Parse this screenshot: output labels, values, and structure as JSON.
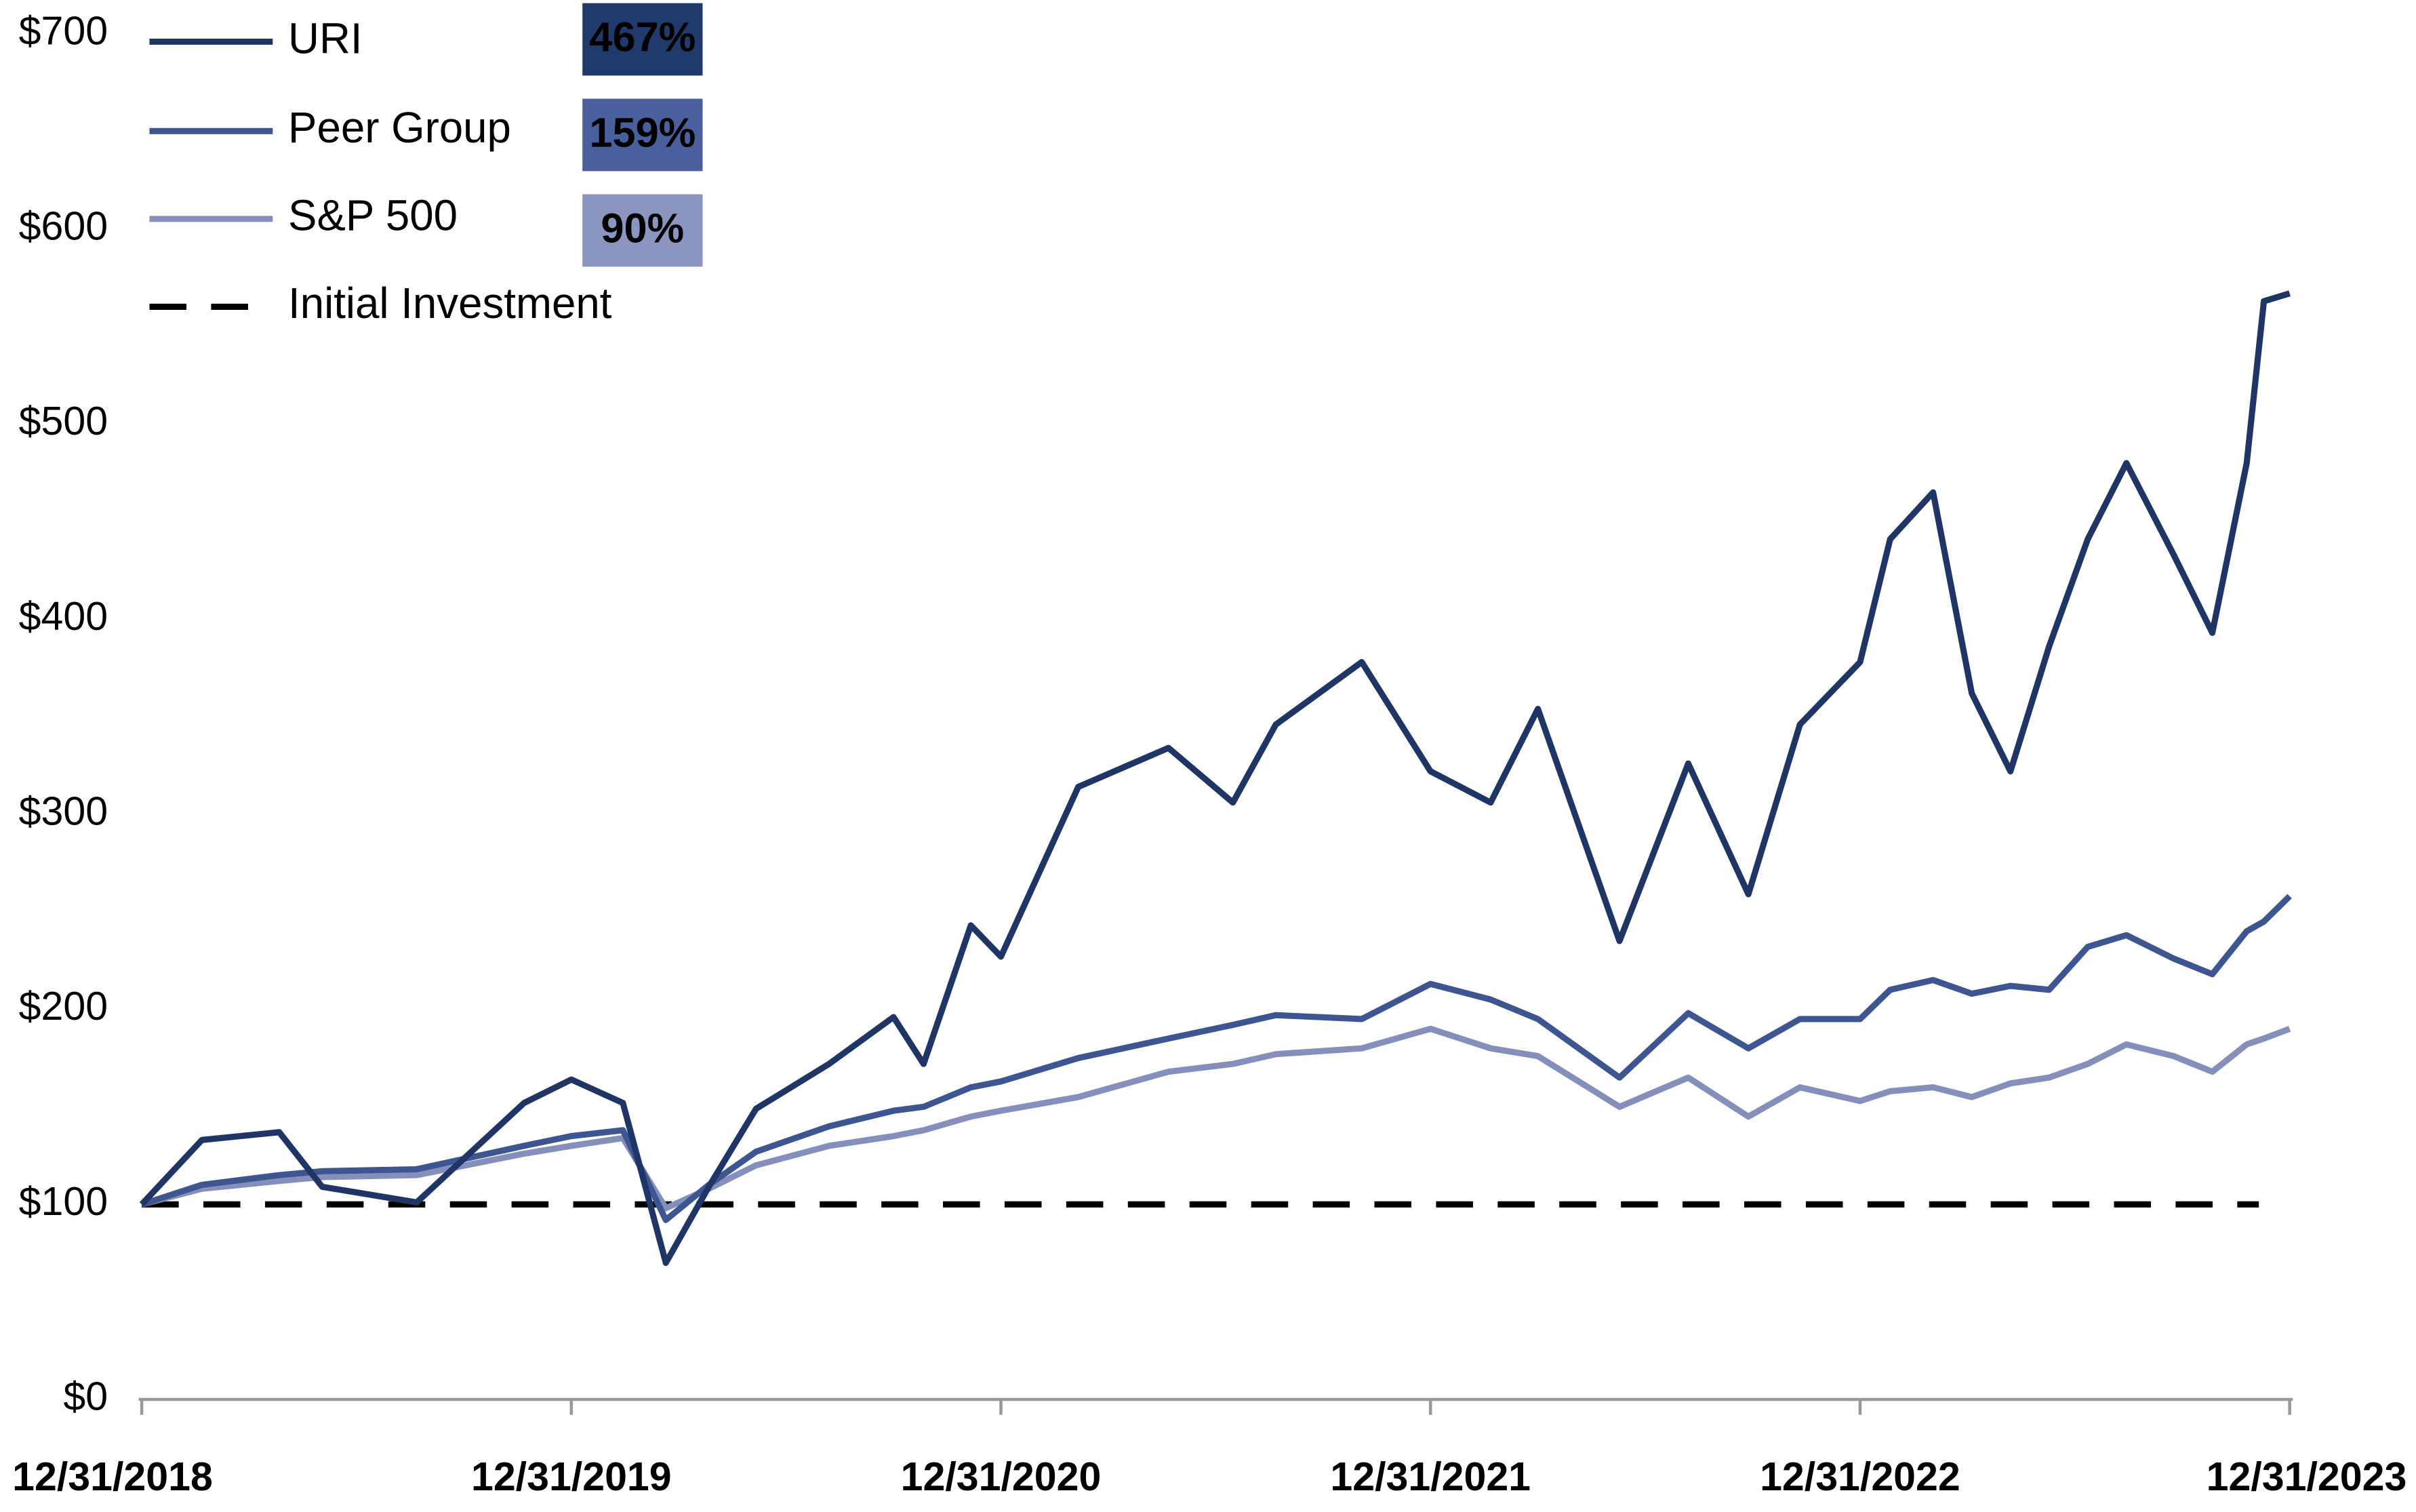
{
  "chart_data": {
    "type": "line",
    "x": [
      0,
      0.14,
      0.32,
      0.42,
      0.64,
      0.89,
      1.0,
      1.12,
      1.22,
      1.32,
      1.43,
      1.6,
      1.75,
      1.82,
      1.93,
      2.0,
      2.18,
      2.39,
      2.54,
      2.64,
      2.84,
      3.0,
      3.14,
      3.25,
      3.44,
      3.6,
      3.74,
      3.86,
      4.0,
      4.07,
      4.17,
      4.26,
      4.35,
      4.44,
      4.53,
      4.62,
      4.73,
      4.82,
      4.9,
      4.94,
      5.0
    ],
    "series": [
      {
        "name": "URI",
        "color": "#1f3566",
        "badge": "467%",
        "badge_color": "#213a6c",
        "badge_text_color": "#ffffff",
        "values": [
          100,
          133,
          137,
          109,
          101,
          152,
          164,
          152,
          70,
          109,
          149,
          172,
          196,
          172,
          243,
          227,
          314,
          334,
          306,
          346,
          378,
          322,
          306,
          354,
          235,
          326,
          259,
          346,
          378,
          441,
          465,
          362,
          322,
          386,
          441,
          480,
          433,
          393,
          480,
          563,
          567
        ]
      },
      {
        "name": "Peer Group",
        "color": "#3d5591",
        "badge": "159%",
        "badge_color": "#4a5f9e",
        "badge_text_color": "#ffffff",
        "values": [
          100,
          110,
          115,
          117,
          118,
          130,
          135,
          138,
          92,
          110,
          127,
          140,
          148,
          150,
          160,
          163,
          175,
          185,
          192,
          197,
          195,
          213,
          205,
          195,
          165,
          198,
          180,
          195,
          195,
          210,
          215,
          208,
          212,
          210,
          232,
          238,
          226,
          218,
          240,
          245,
          258
        ]
      },
      {
        "name": "S&P 500",
        "color": "#8490bb",
        "badge": "90%",
        "badge_color": "#8a96c0",
        "badge_text_color": "#000000",
        "values": [
          100,
          108,
          112,
          114,
          115,
          126,
          130,
          134,
          98,
          108,
          120,
          130,
          135,
          138,
          145,
          148,
          155,
          168,
          172,
          177,
          180,
          190,
          180,
          176,
          150,
          165,
          145,
          160,
          153,
          158,
          160,
          155,
          162,
          165,
          172,
          182,
          176,
          168,
          182,
          185,
          190
        ]
      }
    ],
    "reference_line": {
      "name": "Initial Investment",
      "value": 100,
      "color": "#000000"
    },
    "xlim": [
      0,
      5
    ],
    "xticks": [
      {
        "value": 0,
        "label": "12/31/2018"
      },
      {
        "value": 1,
        "label": "12/31/2019"
      },
      {
        "value": 2,
        "label": "12/31/2020"
      },
      {
        "value": 3,
        "label": "12/31/2021"
      },
      {
        "value": 4,
        "label": "12/31/2022"
      },
      {
        "value": 5,
        "label": "12/31/2023"
      }
    ],
    "ylim": [
      0,
      700
    ],
    "yticks": [
      {
        "value": 0,
        "label": "$0"
      },
      {
        "value": 100,
        "label": "$100"
      },
      {
        "value": 200,
        "label": "$200"
      },
      {
        "value": 300,
        "label": "$300"
      },
      {
        "value": 400,
        "label": "$400"
      },
      {
        "value": 500,
        "label": "$500"
      },
      {
        "value": 600,
        "label": "$600"
      },
      {
        "value": 700,
        "label": "$700"
      }
    ],
    "grid": false,
    "legend": "top-left"
  }
}
